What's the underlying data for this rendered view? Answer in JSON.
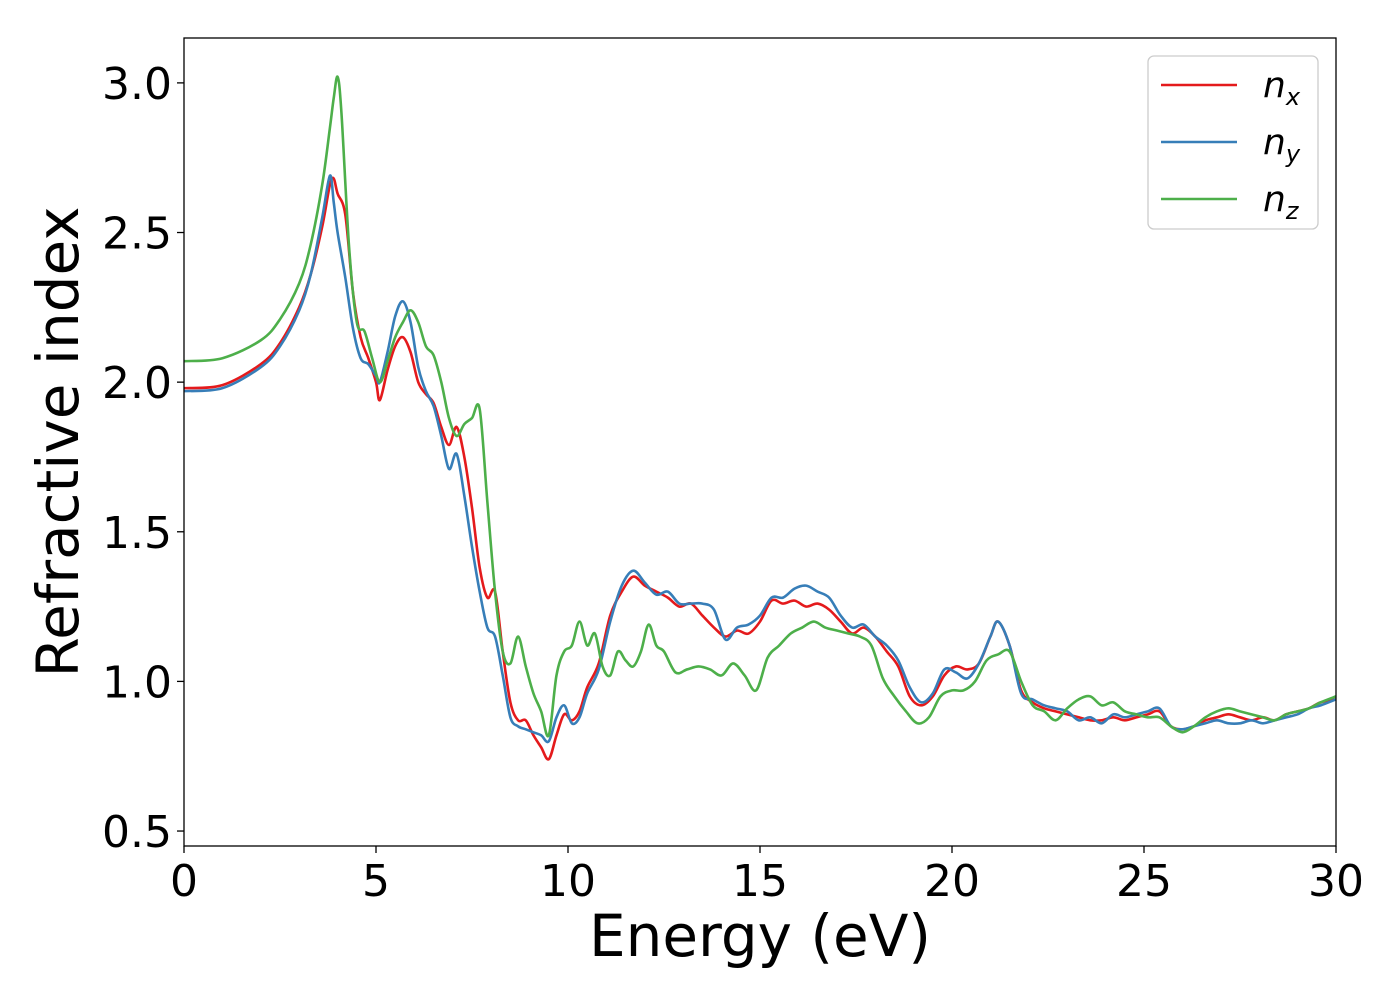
{
  "chart_data": {
    "type": "line",
    "title": "",
    "xlabel": "Energy (eV)",
    "ylabel": "Refractive index",
    "xlim": [
      0,
      30
    ],
    "ylim": [
      0.45,
      3.15
    ],
    "xticks": [
      0,
      5,
      10,
      15,
      20,
      25,
      30
    ],
    "yticks": [
      0.5,
      1.0,
      1.5,
      2.0,
      2.5,
      3.0
    ],
    "xtick_labels": [
      "0",
      "5",
      "10",
      "15",
      "20",
      "25",
      "30"
    ],
    "ytick_labels": [
      "0.5",
      "1.0",
      "1.5",
      "2.0",
      "2.5",
      "3.0"
    ],
    "grid": false,
    "legend_position": "top-right",
    "series": [
      {
        "name": "n_x",
        "legend_base": "n",
        "legend_sub": "x",
        "color": "#e41a1c",
        "x": [
          0,
          1,
          2,
          2.5,
          3,
          3.3,
          3.6,
          3.8,
          3.9,
          4.0,
          4.2,
          4.4,
          4.6,
          4.8,
          5.0,
          5.1,
          5.3,
          5.5,
          5.7,
          5.9,
          6.1,
          6.3,
          6.5,
          6.7,
          6.9,
          7.1,
          7.3,
          7.5,
          7.7,
          7.9,
          8.1,
          8.3,
          8.5,
          8.7,
          8.9,
          9.1,
          9.3,
          9.5,
          9.7,
          9.9,
          10.1,
          10.3,
          10.5,
          10.8,
          11.1,
          11.4,
          11.7,
          12.0,
          12.3,
          12.6,
          12.9,
          13.2,
          13.5,
          13.8,
          14.1,
          14.4,
          14.7,
          15.0,
          15.3,
          15.6,
          15.9,
          16.2,
          16.5,
          16.8,
          17.1,
          17.4,
          17.7,
          18.0,
          18.3,
          18.6,
          18.9,
          19.2,
          19.5,
          19.8,
          20.1,
          20.4,
          20.7,
          21.0,
          21.2,
          21.5,
          21.8,
          22.1,
          22.4,
          22.7,
          23.0,
          23.3,
          23.6,
          23.9,
          24.2,
          24.5,
          24.8,
          25.1,
          25.4,
          25.7,
          26.0,
          26.3,
          26.6,
          26.9,
          27.2,
          27.5,
          27.8,
          28.1,
          28.4,
          28.7,
          29.0,
          29.3,
          29.6,
          30.0
        ],
        "y": [
          1.98,
          1.99,
          2.06,
          2.13,
          2.25,
          2.36,
          2.52,
          2.66,
          2.68,
          2.63,
          2.56,
          2.3,
          2.15,
          2.08,
          2.0,
          1.94,
          2.04,
          2.12,
          2.15,
          2.1,
          2.0,
          1.96,
          1.93,
          1.85,
          1.79,
          1.85,
          1.75,
          1.58,
          1.38,
          1.28,
          1.3,
          1.1,
          0.93,
          0.87,
          0.87,
          0.82,
          0.78,
          0.74,
          0.82,
          0.89,
          0.87,
          0.9,
          0.98,
          1.06,
          1.22,
          1.3,
          1.35,
          1.32,
          1.3,
          1.28,
          1.25,
          1.26,
          1.22,
          1.18,
          1.15,
          1.17,
          1.16,
          1.2,
          1.27,
          1.26,
          1.27,
          1.25,
          1.26,
          1.24,
          1.2,
          1.16,
          1.18,
          1.15,
          1.1,
          1.05,
          0.95,
          0.92,
          0.95,
          1.02,
          1.05,
          1.04,
          1.06,
          1.15,
          1.2,
          1.12,
          0.97,
          0.93,
          0.91,
          0.9,
          0.89,
          0.88,
          0.87,
          0.87,
          0.88,
          0.87,
          0.88,
          0.89,
          0.9,
          0.85,
          0.84,
          0.85,
          0.87,
          0.88,
          0.89,
          0.88,
          0.87,
          0.88,
          0.87,
          0.89,
          0.9,
          0.91,
          0.93,
          0.94
        ]
      },
      {
        "name": "n_y",
        "legend_base": "n",
        "legend_sub": "y",
        "color": "#377eb8",
        "x": [
          0,
          1,
          2,
          2.5,
          3,
          3.3,
          3.6,
          3.8,
          3.9,
          4.0,
          4.2,
          4.4,
          4.6,
          4.8,
          5.0,
          5.1,
          5.3,
          5.5,
          5.7,
          5.9,
          6.1,
          6.3,
          6.5,
          6.7,
          6.9,
          7.1,
          7.3,
          7.5,
          7.7,
          7.9,
          8.1,
          8.3,
          8.5,
          8.7,
          8.9,
          9.1,
          9.3,
          9.5,
          9.7,
          9.9,
          10.1,
          10.3,
          10.5,
          10.8,
          11.1,
          11.4,
          11.7,
          12.0,
          12.3,
          12.6,
          12.9,
          13.2,
          13.5,
          13.8,
          14.1,
          14.4,
          14.7,
          15.0,
          15.3,
          15.6,
          15.9,
          16.2,
          16.5,
          16.8,
          17.1,
          17.4,
          17.7,
          18.0,
          18.3,
          18.6,
          18.9,
          19.2,
          19.5,
          19.8,
          20.1,
          20.4,
          20.7,
          21.0,
          21.2,
          21.5,
          21.8,
          22.1,
          22.4,
          22.7,
          23.0,
          23.3,
          23.6,
          23.9,
          24.2,
          24.5,
          24.8,
          25.1,
          25.4,
          25.7,
          26.0,
          26.3,
          26.6,
          26.9,
          27.2,
          27.5,
          27.8,
          28.1,
          28.4,
          28.7,
          29.0,
          29.3,
          29.6,
          30.0
        ],
        "y": [
          1.97,
          1.98,
          2.05,
          2.12,
          2.24,
          2.36,
          2.55,
          2.69,
          2.6,
          2.5,
          2.35,
          2.18,
          2.08,
          2.06,
          2.02,
          2.0,
          2.1,
          2.22,
          2.27,
          2.2,
          2.05,
          1.97,
          1.92,
          1.82,
          1.71,
          1.76,
          1.62,
          1.45,
          1.3,
          1.18,
          1.15,
          1.02,
          0.88,
          0.85,
          0.84,
          0.83,
          0.82,
          0.8,
          0.88,
          0.92,
          0.86,
          0.88,
          0.96,
          1.04,
          1.2,
          1.32,
          1.37,
          1.33,
          1.29,
          1.3,
          1.26,
          1.26,
          1.26,
          1.24,
          1.14,
          1.18,
          1.19,
          1.22,
          1.28,
          1.28,
          1.31,
          1.32,
          1.3,
          1.28,
          1.22,
          1.18,
          1.19,
          1.15,
          1.12,
          1.07,
          0.98,
          0.93,
          0.96,
          1.04,
          1.03,
          1.01,
          1.06,
          1.15,
          1.2,
          1.12,
          0.96,
          0.94,
          0.92,
          0.91,
          0.9,
          0.87,
          0.88,
          0.86,
          0.89,
          0.88,
          0.89,
          0.9,
          0.91,
          0.85,
          0.84,
          0.85,
          0.86,
          0.87,
          0.86,
          0.86,
          0.87,
          0.86,
          0.87,
          0.88,
          0.89,
          0.91,
          0.92,
          0.94
        ]
      },
      {
        "name": "n_z",
        "legend_base": "n",
        "legend_sub": "z",
        "color": "#4daf4a",
        "x": [
          0,
          1,
          2,
          2.5,
          3,
          3.3,
          3.6,
          3.8,
          3.9,
          4.0,
          4.1,
          4.3,
          4.5,
          4.7,
          4.9,
          5.1,
          5.3,
          5.5,
          5.7,
          5.9,
          6.1,
          6.3,
          6.5,
          6.7,
          6.9,
          7.1,
          7.3,
          7.5,
          7.7,
          7.9,
          8.1,
          8.3,
          8.5,
          8.7,
          8.9,
          9.1,
          9.3,
          9.5,
          9.7,
          9.9,
          10.1,
          10.3,
          10.5,
          10.7,
          10.9,
          11.1,
          11.3,
          11.5,
          11.7,
          11.9,
          12.1,
          12.3,
          12.5,
          12.8,
          13.1,
          13.4,
          13.7,
          14.0,
          14.3,
          14.6,
          14.9,
          15.2,
          15.5,
          15.8,
          16.1,
          16.4,
          16.7,
          17.0,
          17.3,
          17.6,
          17.9,
          18.2,
          18.5,
          18.8,
          19.1,
          19.4,
          19.7,
          20.0,
          20.3,
          20.6,
          20.9,
          21.2,
          21.5,
          21.8,
          22.1,
          22.4,
          22.7,
          23.0,
          23.3,
          23.6,
          23.9,
          24.2,
          24.5,
          24.8,
          25.1,
          25.4,
          25.7,
          26.0,
          26.3,
          26.6,
          26.9,
          27.2,
          27.5,
          27.8,
          28.1,
          28.4,
          28.7,
          29.0,
          29.3,
          29.6,
          30.0
        ],
        "y": [
          2.07,
          2.08,
          2.14,
          2.21,
          2.33,
          2.46,
          2.66,
          2.85,
          2.95,
          3.02,
          2.9,
          2.45,
          2.2,
          2.17,
          2.08,
          2.0,
          2.07,
          2.15,
          2.2,
          2.24,
          2.2,
          2.12,
          2.09,
          2.0,
          1.88,
          1.82,
          1.86,
          1.88,
          1.91,
          1.6,
          1.3,
          1.1,
          1.06,
          1.15,
          1.05,
          0.96,
          0.9,
          0.82,
          1.02,
          1.1,
          1.12,
          1.2,
          1.12,
          1.16,
          1.05,
          1.02,
          1.1,
          1.07,
          1.05,
          1.1,
          1.19,
          1.12,
          1.1,
          1.03,
          1.04,
          1.05,
          1.04,
          1.02,
          1.06,
          1.02,
          0.97,
          1.08,
          1.12,
          1.16,
          1.18,
          1.2,
          1.18,
          1.17,
          1.16,
          1.15,
          1.12,
          1.01,
          0.95,
          0.9,
          0.86,
          0.88,
          0.95,
          0.97,
          0.97,
          1.0,
          1.07,
          1.09,
          1.1,
          1.0,
          0.92,
          0.9,
          0.87,
          0.91,
          0.94,
          0.95,
          0.92,
          0.93,
          0.9,
          0.89,
          0.88,
          0.88,
          0.85,
          0.83,
          0.85,
          0.88,
          0.9,
          0.91,
          0.9,
          0.89,
          0.88,
          0.87,
          0.89,
          0.9,
          0.91,
          0.93,
          0.95
        ]
      }
    ]
  }
}
